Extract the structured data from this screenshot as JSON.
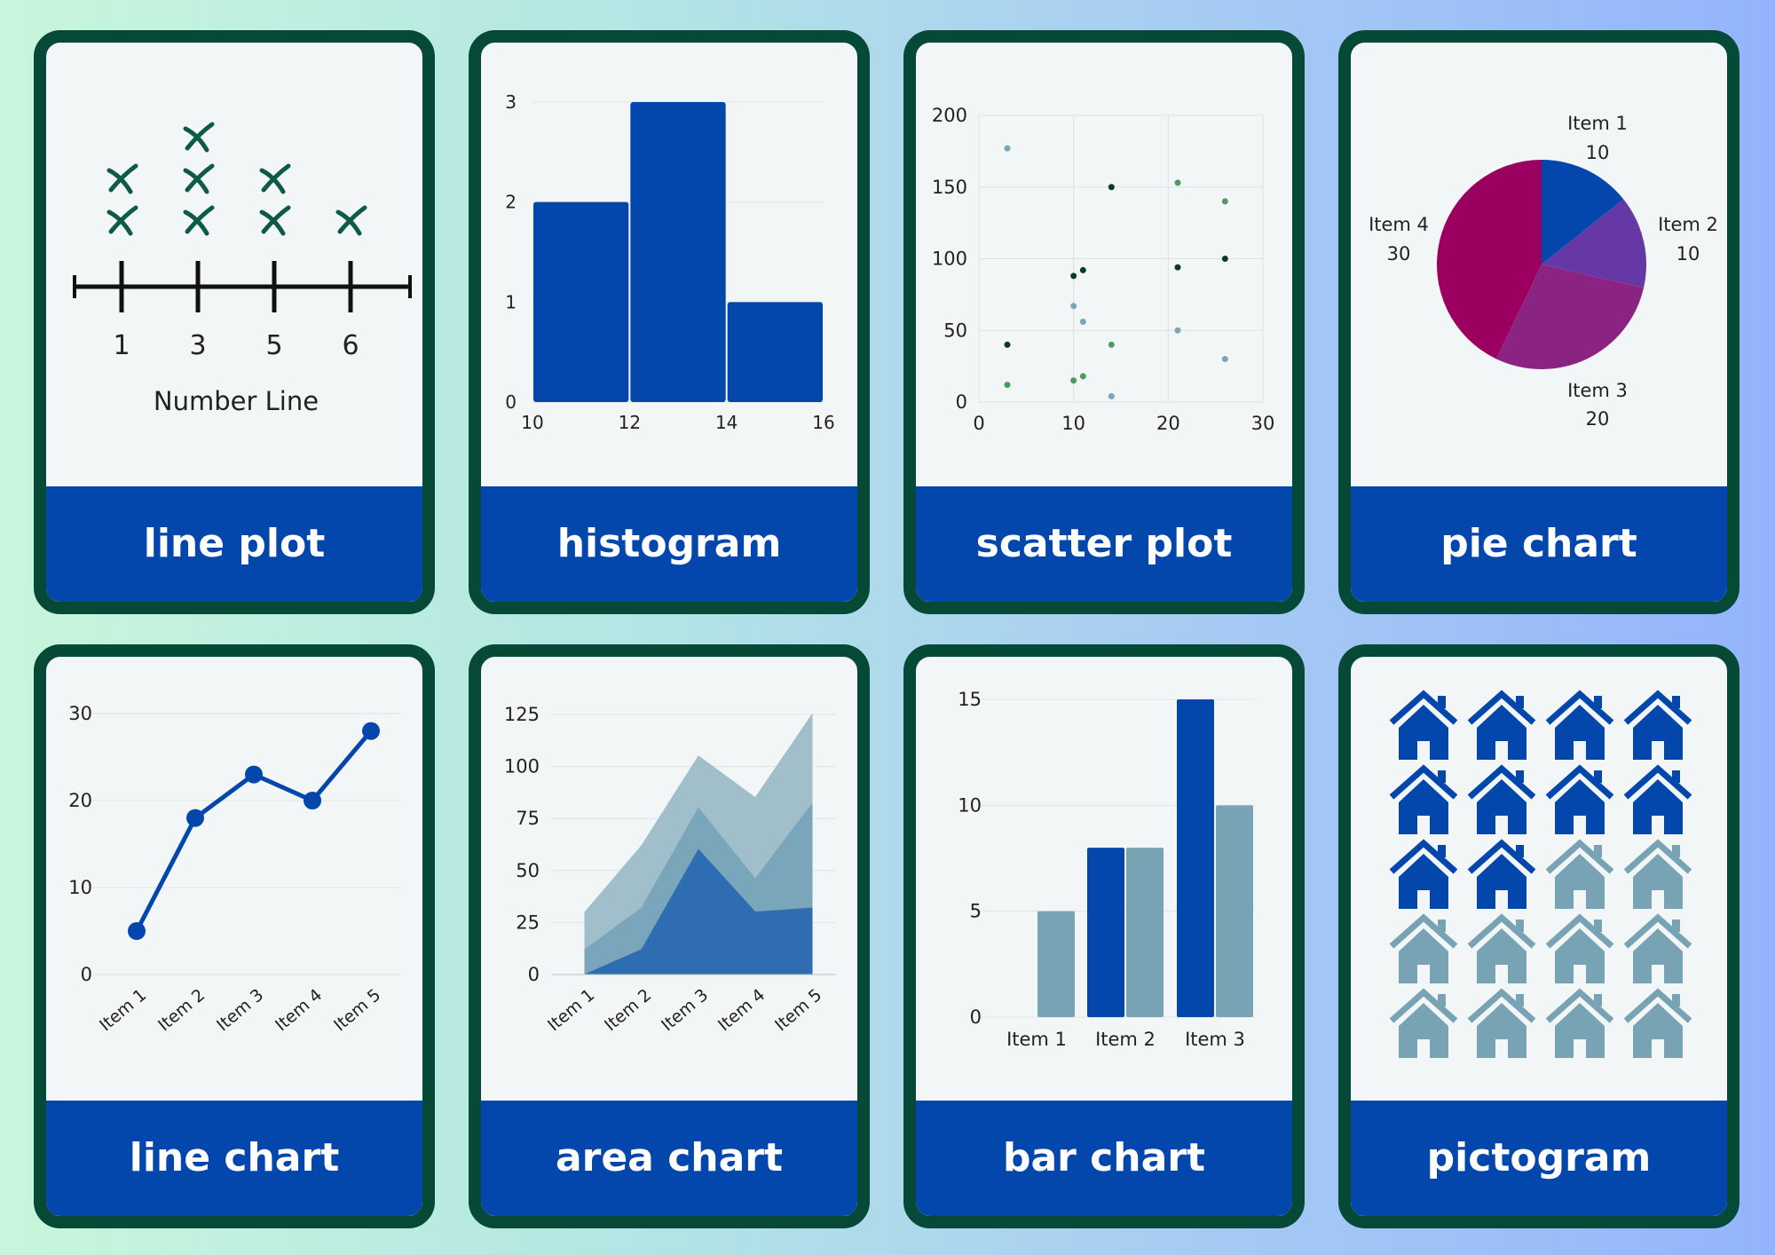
{
  "cards": [
    {
      "label": "line plot",
      "chart_data": {
        "type": "dot_plot",
        "ticks": [
          "1",
          "3",
          "5",
          "6"
        ],
        "counts": [
          2,
          3,
          2,
          1
        ],
        "marker": "x",
        "xlabel": "Number Line",
        "colors": {
          "marker": "#0d5b44",
          "axis": "#111111"
        }
      }
    },
    {
      "label": "histogram",
      "chart_data": {
        "type": "bar",
        "bins": [
          [
            10,
            12
          ],
          [
            12,
            14
          ],
          [
            14,
            16
          ]
        ],
        "values": [
          2,
          3,
          1
        ],
        "xticks": [
          10,
          12,
          14,
          16
        ],
        "yticks": [
          0,
          1,
          2,
          3
        ],
        "xlim": [
          10,
          16
        ],
        "ylim": [
          0,
          3
        ],
        "colors": {
          "bar": "#0447ac"
        }
      }
    },
    {
      "label": "scatter plot",
      "chart_data": {
        "type": "scatter",
        "xlim": [
          0,
          30
        ],
        "ylim": [
          0,
          200
        ],
        "xticks": [
          0,
          10,
          20,
          30
        ],
        "yticks": [
          0,
          50,
          100,
          150,
          200
        ],
        "grid": true,
        "series": [
          {
            "color": "#0a3a2c",
            "points": [
              [
                3,
                40
              ],
              [
                10,
                88
              ],
              [
                11,
                92
              ],
              [
                14,
                150
              ],
              [
                21,
                94
              ],
              [
                26,
                100
              ]
            ]
          },
          {
            "color": "#4f9a5e",
            "points": [
              [
                3,
                12
              ],
              [
                10,
                15
              ],
              [
                11,
                18
              ],
              [
                14,
                40
              ],
              [
                21,
                153
              ],
              [
                26,
                140
              ]
            ]
          },
          {
            "color": "#7aa6bb",
            "points": [
              [
                3,
                177
              ],
              [
                10,
                67
              ],
              [
                11,
                56
              ],
              [
                14,
                4
              ],
              [
                21,
                50
              ],
              [
                26,
                30
              ]
            ]
          }
        ]
      }
    },
    {
      "label": "pie chart",
      "chart_data": {
        "type": "pie",
        "slices": [
          {
            "name": "Item 1",
            "value": 10,
            "color": "#0447ac"
          },
          {
            "name": "Item 2",
            "value": 10,
            "color": "#6538a6"
          },
          {
            "name": "Item 3",
            "value": 20,
            "color": "#8b2383"
          },
          {
            "name": "Item 4",
            "value": 30,
            "color": "#9b0060"
          }
        ]
      }
    },
    {
      "label": "line chart",
      "chart_data": {
        "type": "line",
        "categories": [
          "Item 1",
          "Item 2",
          "Item 3",
          "Item 4",
          "Item 5"
        ],
        "values": [
          5,
          18,
          23,
          20,
          28
        ],
        "ylim": [
          0,
          30
        ],
        "yticks": [
          0,
          10,
          20,
          30
        ],
        "colors": {
          "line": "#0447ac"
        }
      }
    },
    {
      "label": "area chart",
      "chart_data": {
        "type": "area",
        "stacked": true,
        "categories": [
          "Item 1",
          "Item 2",
          "Item 3",
          "Item 4",
          "Item 5"
        ],
        "ylim": [
          0,
          125
        ],
        "yticks": [
          0,
          25,
          50,
          75,
          100,
          125
        ],
        "series": [
          {
            "values": [
              0,
              12,
              60,
              30,
              32
            ],
            "color": "#2f6db3"
          },
          {
            "values": [
              12,
              20,
              20,
              16,
              50
            ],
            "color": "#7aa6bb"
          },
          {
            "values": [
              18,
              30,
              25,
              39,
              43
            ],
            "color": "#a1bfcb"
          }
        ]
      }
    },
    {
      "label": "bar chart",
      "chart_data": {
        "type": "bar",
        "categories": [
          "Item 1",
          "Item 2",
          "Item 3"
        ],
        "ylim": [
          0,
          15
        ],
        "yticks": [
          0,
          5,
          10,
          15
        ],
        "series": [
          {
            "values": [
              0,
              8,
              15
            ],
            "color": "#0447ac"
          },
          {
            "values": [
              5,
              8,
              10
            ],
            "color": "#78a3b5"
          }
        ]
      }
    },
    {
      "label": "pictogram",
      "chart_data": {
        "type": "pictogram",
        "icon": "house-icon",
        "columns": 4,
        "total": 20,
        "highlighted": 10,
        "colors": {
          "highlighted": "#0447ac",
          "other": "#78a3b5"
        }
      }
    }
  ]
}
